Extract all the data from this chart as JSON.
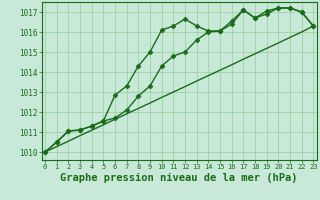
{
  "x": [
    0,
    1,
    2,
    3,
    4,
    5,
    6,
    7,
    8,
    9,
    10,
    11,
    12,
    13,
    14,
    15,
    16,
    17,
    18,
    19,
    20,
    21,
    22,
    23
  ],
  "series1": [
    1010.0,
    1010.5,
    1011.05,
    1011.1,
    1011.3,
    1011.55,
    1012.85,
    1013.3,
    1014.3,
    1015.0,
    1016.1,
    1016.3,
    1016.65,
    1016.3,
    1016.05,
    1016.05,
    1016.55,
    1017.1,
    1016.7,
    1017.05,
    1017.2,
    1017.2,
    1017.0,
    1016.3
  ],
  "series2": [
    1010.0,
    1010.5,
    1011.05,
    1011.1,
    1011.3,
    1011.55,
    1011.7,
    1012.1,
    1012.8,
    1013.3,
    1014.3,
    1014.8,
    1015.0,
    1015.6,
    1016.0,
    1016.05,
    1016.4,
    1017.1,
    1016.7,
    1016.9,
    1017.2,
    1017.2,
    1017.0,
    1016.3
  ],
  "series3": [
    1010.0,
    1010.27,
    1010.54,
    1010.82,
    1011.09,
    1011.36,
    1011.64,
    1011.91,
    1012.18,
    1012.45,
    1012.73,
    1013.0,
    1013.27,
    1013.55,
    1013.82,
    1014.09,
    1014.36,
    1014.64,
    1014.91,
    1015.18,
    1015.45,
    1015.73,
    1016.0,
    1016.3
  ],
  "line_color": "#1a6b1a",
  "bg_color": "#c8e8d8",
  "grid_color": "#99cc99",
  "ylabel_values": [
    1010,
    1011,
    1012,
    1013,
    1014,
    1015,
    1016,
    1017
  ],
  "ylim": [
    1009.6,
    1017.5
  ],
  "xlim": [
    -0.3,
    23.3
  ],
  "xlabel": "Graphe pression niveau de la mer (hPa)",
  "xlabel_fontsize": 7.5,
  "marker": "D",
  "marker_size": 2.5,
  "line_width": 1.0
}
